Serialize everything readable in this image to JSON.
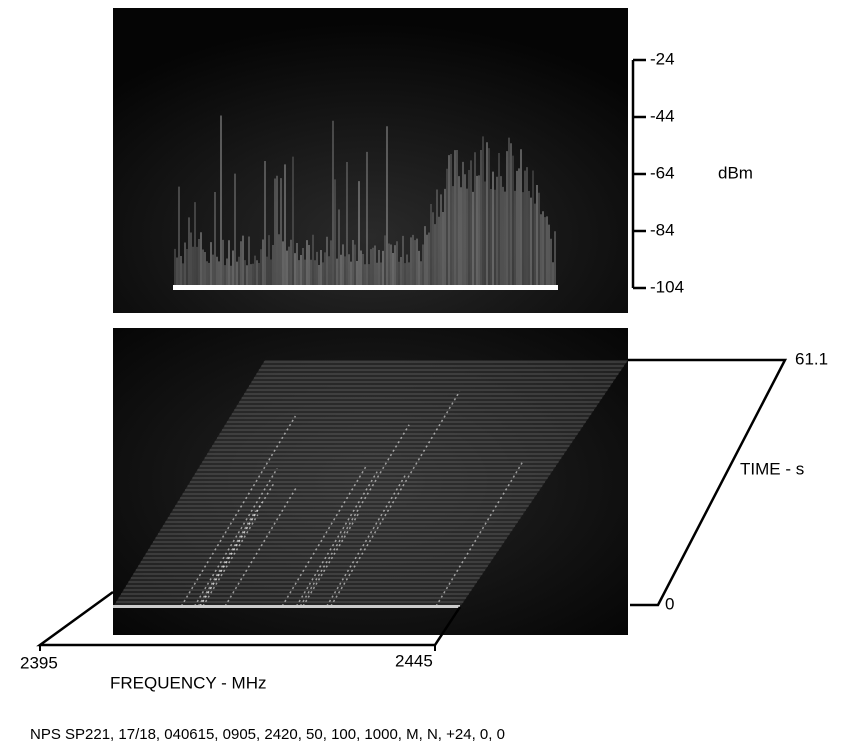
{
  "power_axis": {
    "unit": "dBm",
    "ticks": [
      -24,
      -44,
      -64,
      -84,
      -104
    ]
  },
  "time_axis": {
    "label": "TIME - s",
    "ticks": [
      0,
      61.1
    ]
  },
  "frequency_axis": {
    "label": "FREQUENCY - MHz",
    "ticks": [
      2395,
      2445
    ]
  },
  "caption": "NPS SP221, 17/18, 040615, 0905, 2420, 50, 100, 1000, M, N, +24, 0, 0"
}
